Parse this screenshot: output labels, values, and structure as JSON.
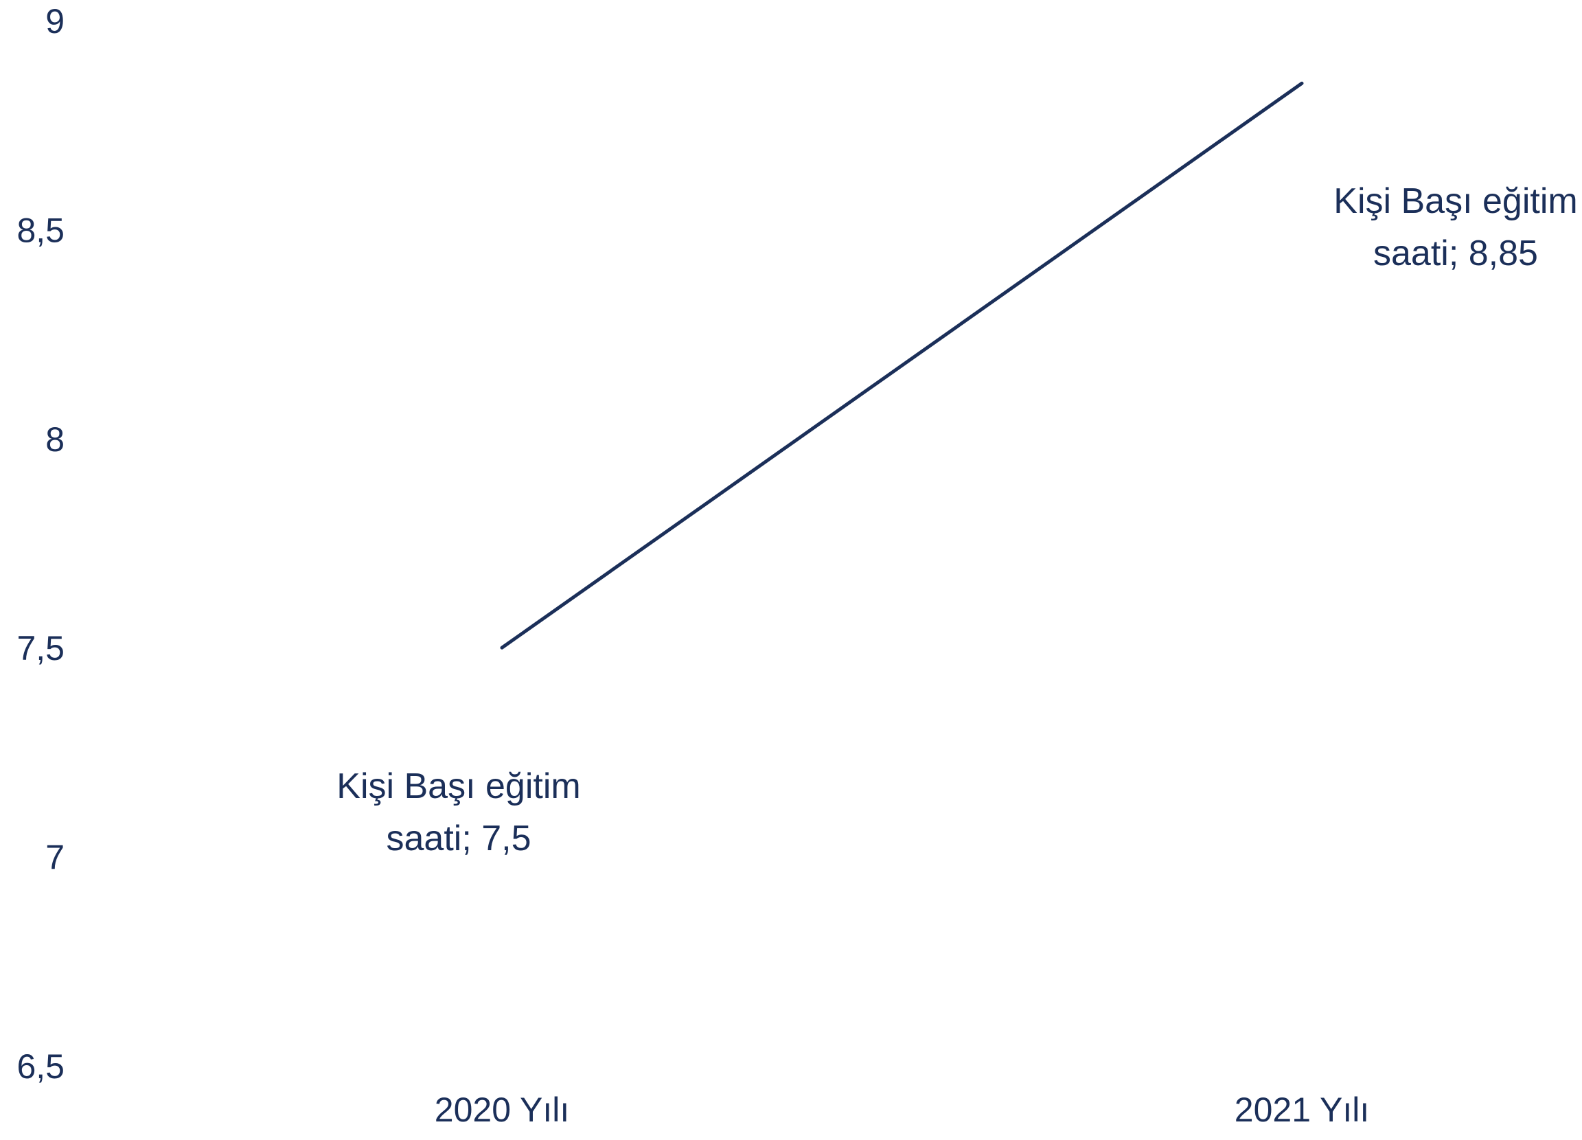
{
  "chart_data": {
    "type": "line",
    "categories": [
      "2020 Yılı",
      "2021 Yılı"
    ],
    "series": [
      {
        "values": [
          7.5,
          8.85
        ]
      }
    ],
    "ylim": [
      6.5,
      9
    ],
    "yticks": [
      {
        "value": 6.5,
        "label": "6,5"
      },
      {
        "value": 7,
        "label": "7"
      },
      {
        "value": 7.5,
        "label": "7,5"
      },
      {
        "value": 8,
        "label": "8"
      },
      {
        "value": 8.5,
        "label": "8,5"
      },
      {
        "value": 9,
        "label": "9"
      }
    ],
    "data_labels": [
      {
        "lines": [
          "Kişi Başı eğitim",
          "saati; 7,5"
        ]
      },
      {
        "lines": [
          "Kişi Başı eğitim",
          "saati; 8,85"
        ]
      }
    ],
    "grid": false,
    "legend": "none",
    "colors": {
      "line": "#1b2f59",
      "text": "#1b2f59"
    }
  }
}
